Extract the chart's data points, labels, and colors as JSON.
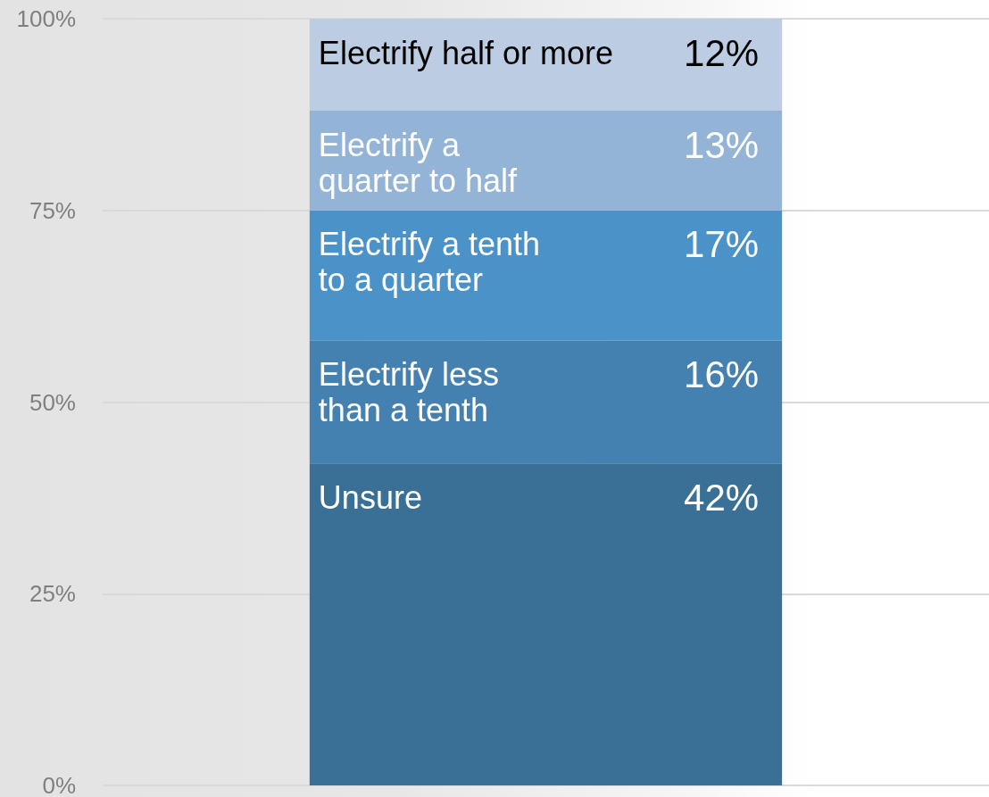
{
  "chart_data": {
    "type": "bar",
    "stacked": true,
    "categories": [
      null
    ],
    "series": [
      {
        "name": "Unsure",
        "color": "#3a6f96",
        "values": [
          42
        ],
        "value_labels": [
          "42%"
        ]
      },
      {
        "name": "Electrify less\nthan a tenth",
        "color": "#4581b0",
        "values": [
          16
        ],
        "value_labels": [
          "16%"
        ]
      },
      {
        "name": "Electrify a tenth\nto a quarter",
        "color": "#4a92c7",
        "values": [
          17
        ],
        "value_labels": [
          "17%"
        ]
      },
      {
        "name": "Electrify a\nquarter to half",
        "color": "#93b3d7",
        "values": [
          13
        ],
        "value_labels": [
          "13%"
        ]
      },
      {
        "name": "Electrify half or more",
        "color": "#bccde3",
        "values": [
          12
        ],
        "value_labels": [
          "12%"
        ]
      }
    ],
    "ylim": [
      0,
      100
    ],
    "yticks": [
      {
        "value": 0,
        "label": "0%"
      },
      {
        "value": 25,
        "label": "25%"
      },
      {
        "value": 50,
        "label": "50%"
      },
      {
        "value": 75,
        "label": "75%"
      },
      {
        "value": 100,
        "label": "100%"
      }
    ],
    "grid": "y",
    "legend": false
  }
}
